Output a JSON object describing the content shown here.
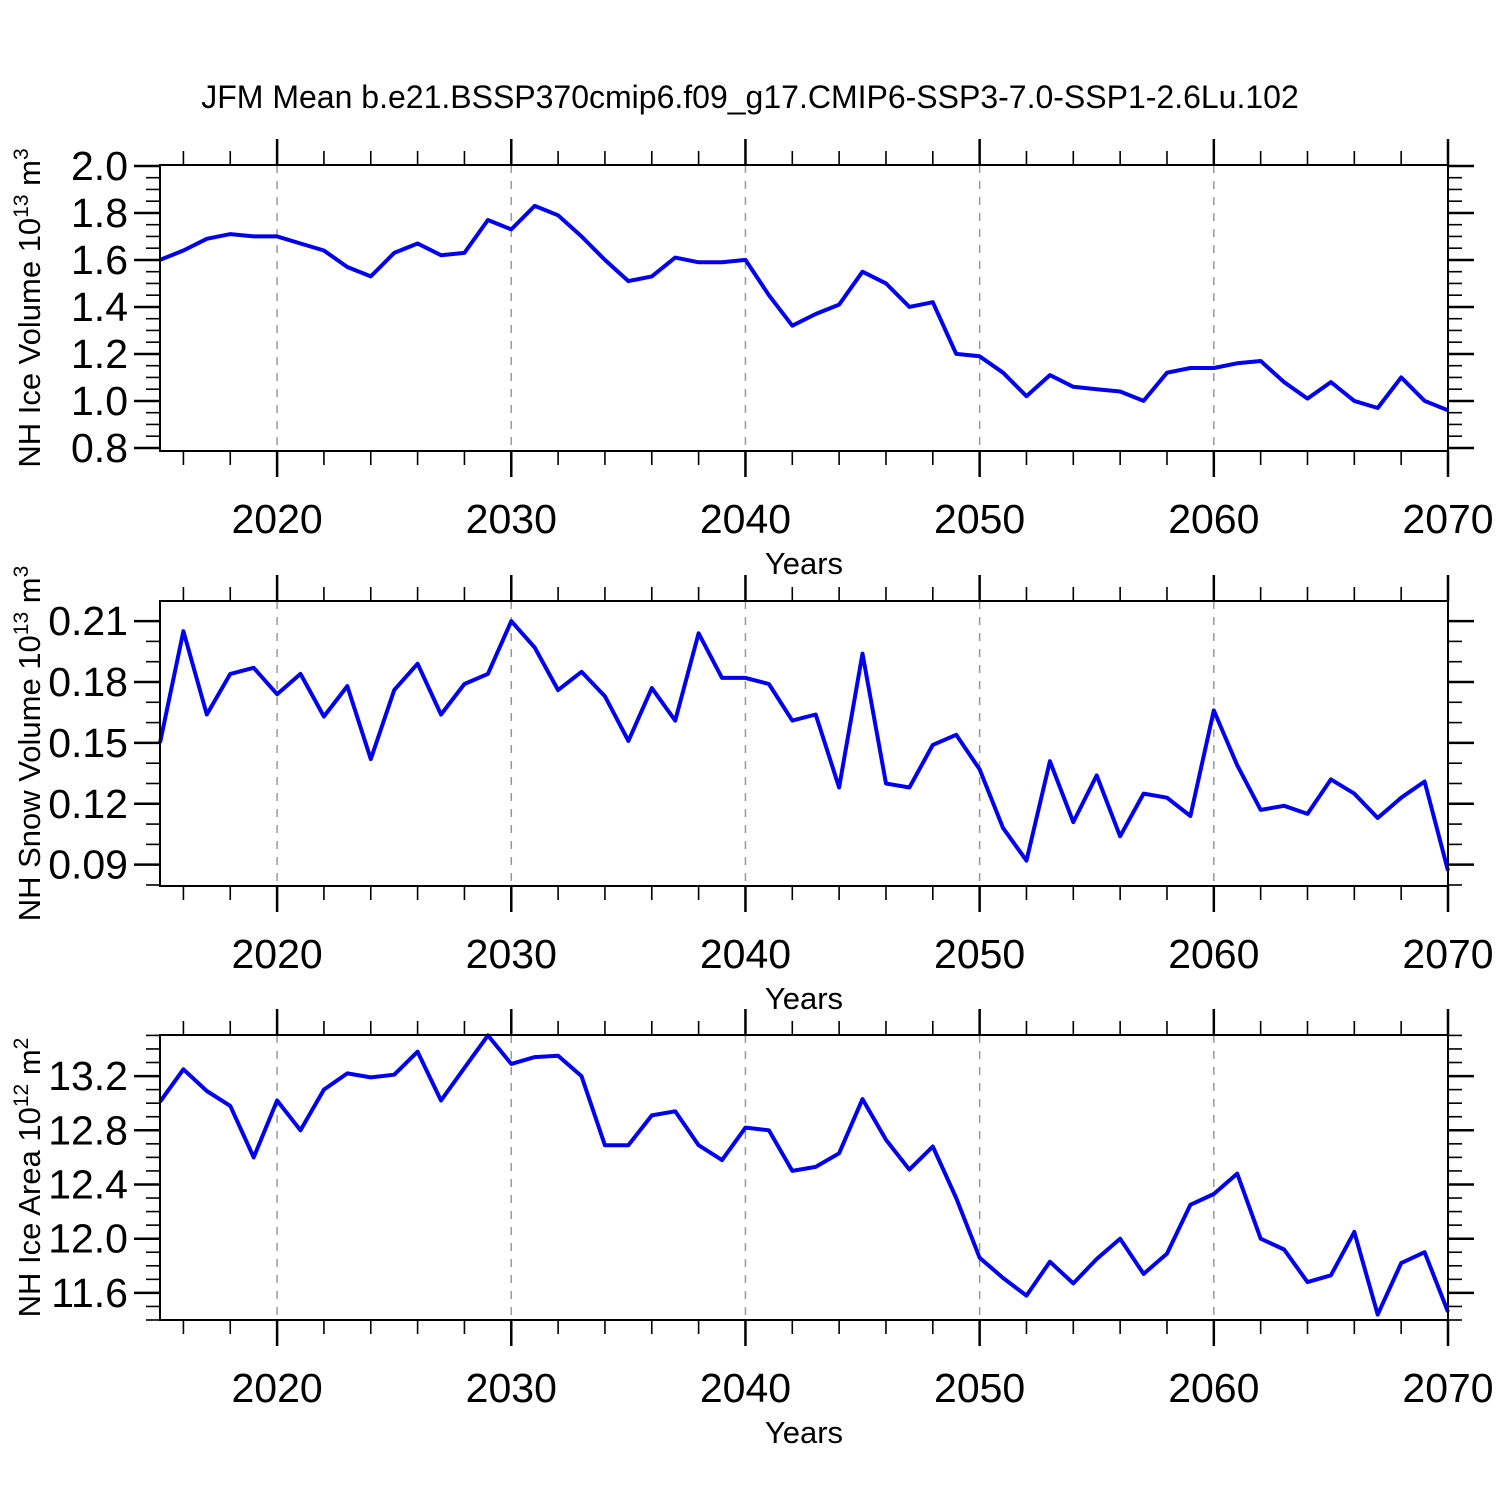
{
  "title": "JFM Mean b.e21.BSSP370cmip6.f09_g17.CMIP6-SSP3-7.0-SSP1-2.6Lu.102",
  "line_color": "#0000ee",
  "grid_color": "#999999",
  "axis_color": "#000000",
  "chart_data": [
    {
      "type": "line",
      "ylabel": "NH Ice Volume 10^13 m^3",
      "ylabel_parts": [
        {
          "text": "NH Ice Volume 10",
          "sup": false
        },
        {
          "text": "13",
          "sup": true
        },
        {
          "text": " m",
          "sup": false
        },
        {
          "text": "3",
          "sup": true
        }
      ],
      "xlabel": "Years",
      "x": [
        2015,
        2016,
        2017,
        2018,
        2019,
        2020,
        2021,
        2022,
        2023,
        2024,
        2025,
        2026,
        2027,
        2028,
        2029,
        2030,
        2031,
        2032,
        2033,
        2034,
        2035,
        2036,
        2037,
        2038,
        2039,
        2040,
        2041,
        2042,
        2043,
        2044,
        2045,
        2046,
        2047,
        2048,
        2049,
        2050,
        2051,
        2052,
        2053,
        2054,
        2055,
        2056,
        2057,
        2058,
        2059,
        2060,
        2061,
        2062,
        2063,
        2064,
        2065,
        2066,
        2067,
        2068,
        2069,
        2070
      ],
      "values": [
        1.6,
        1.64,
        1.69,
        1.71,
        1.7,
        1.7,
        1.67,
        1.64,
        1.57,
        1.53,
        1.63,
        1.67,
        1.62,
        1.63,
        1.77,
        1.73,
        1.83,
        1.79,
        1.7,
        1.6,
        1.51,
        1.53,
        1.61,
        1.59,
        1.59,
        1.6,
        1.45,
        1.32,
        1.37,
        1.41,
        1.55,
        1.5,
        1.4,
        1.42,
        1.2,
        1.19,
        1.12,
        1.02,
        1.11,
        1.06,
        1.05,
        1.04,
        1.0,
        1.12,
        1.14,
        1.14,
        1.16,
        1.17,
        1.08,
        1.01,
        1.08,
        1.0,
        0.97,
        1.1,
        1.0,
        0.96
      ],
      "ylim": [
        0.787,
        2.004
      ],
      "yticks": [
        0.8,
        1.0,
        1.2,
        1.4,
        1.6,
        1.8,
        2.0
      ],
      "ytick_labels": [
        "0.8",
        "1.0",
        "1.2",
        "1.4",
        "1.6",
        "1.8",
        "2.0"
      ],
      "yminor_step": 0.05,
      "xlim": [
        2015,
        2070
      ],
      "xticks": [
        2020,
        2030,
        2040,
        2050,
        2060,
        2070
      ],
      "xtick_labels": [
        "2020",
        "2030",
        "2040",
        "2050",
        "2060",
        "2070"
      ],
      "xminor_step": 2,
      "grid": "vertical-dashed",
      "legend": "none"
    },
    {
      "type": "line",
      "ylabel": "NH Snow Volume 10^13 m^3",
      "ylabel_parts": [
        {
          "text": "NH Snow Volume 10",
          "sup": false
        },
        {
          "text": "13",
          "sup": true
        },
        {
          "text": " m",
          "sup": false
        },
        {
          "text": "3",
          "sup": true
        }
      ],
      "xlabel": "Years",
      "x": [
        2015,
        2016,
        2017,
        2018,
        2019,
        2020,
        2021,
        2022,
        2023,
        2024,
        2025,
        2026,
        2027,
        2028,
        2029,
        2030,
        2031,
        2032,
        2033,
        2034,
        2035,
        2036,
        2037,
        2038,
        2039,
        2040,
        2041,
        2042,
        2043,
        2044,
        2045,
        2046,
        2047,
        2048,
        2049,
        2050,
        2051,
        2052,
        2053,
        2054,
        2055,
        2056,
        2057,
        2058,
        2059,
        2060,
        2061,
        2062,
        2063,
        2064,
        2065,
        2066,
        2067,
        2068,
        2069,
        2070
      ],
      "values": [
        0.15,
        0.205,
        0.164,
        0.184,
        0.187,
        0.174,
        0.184,
        0.163,
        0.178,
        0.142,
        0.176,
        0.189,
        0.164,
        0.179,
        0.184,
        0.21,
        0.197,
        0.176,
        0.185,
        0.173,
        0.151,
        0.177,
        0.161,
        0.204,
        0.182,
        0.182,
        0.179,
        0.161,
        0.164,
        0.128,
        0.194,
        0.13,
        0.128,
        0.149,
        0.154,
        0.137,
        0.108,
        0.092,
        0.141,
        0.111,
        0.134,
        0.104,
        0.125,
        0.123,
        0.114,
        0.166,
        0.139,
        0.117,
        0.119,
        0.115,
        0.132,
        0.125,
        0.113,
        0.123,
        0.131,
        0.087
      ],
      "ylim": [
        0.0795,
        0.2199
      ],
      "yticks": [
        0.09,
        0.12,
        0.15,
        0.18,
        0.21
      ],
      "ytick_labels": [
        "0.09",
        "0.12",
        "0.15",
        "0.18",
        "0.21"
      ],
      "yminor_step": 0.01,
      "xlim": [
        2015,
        2070
      ],
      "xticks": [
        2020,
        2030,
        2040,
        2050,
        2060,
        2070
      ],
      "xtick_labels": [
        "2020",
        "2030",
        "2040",
        "2050",
        "2060",
        "2070"
      ],
      "xminor_step": 2,
      "grid": "vertical-dashed",
      "legend": "none"
    },
    {
      "type": "line",
      "ylabel": "NH Ice Area 10^12 m^2",
      "ylabel_parts": [
        {
          "text": "NH Ice Area 10",
          "sup": false
        },
        {
          "text": "12",
          "sup": true
        },
        {
          "text": " m",
          "sup": false
        },
        {
          "text": "2",
          "sup": true
        }
      ],
      "xlabel": "Years",
      "x": [
        2015,
        2016,
        2017,
        2018,
        2019,
        2020,
        2021,
        2022,
        2023,
        2024,
        2025,
        2026,
        2027,
        2028,
        2029,
        2030,
        2031,
        2032,
        2033,
        2034,
        2035,
        2036,
        2037,
        2038,
        2039,
        2040,
        2041,
        2042,
        2043,
        2044,
        2045,
        2046,
        2047,
        2048,
        2049,
        2050,
        2051,
        2052,
        2053,
        2054,
        2055,
        2056,
        2057,
        2058,
        2059,
        2060,
        2061,
        2062,
        2063,
        2064,
        2065,
        2066,
        2067,
        2068,
        2069,
        2070
      ],
      "values": [
        13.01,
        13.25,
        13.09,
        12.98,
        12.6,
        13.02,
        12.8,
        13.1,
        13.22,
        13.19,
        13.21,
        13.38,
        13.02,
        13.26,
        13.5,
        13.29,
        13.34,
        13.35,
        13.2,
        12.69,
        12.69,
        12.91,
        12.94,
        12.69,
        12.58,
        12.82,
        12.8,
        12.5,
        12.53,
        12.63,
        13.03,
        12.73,
        12.51,
        12.68,
        12.3,
        11.86,
        11.71,
        11.58,
        11.83,
        11.67,
        11.85,
        12.0,
        11.74,
        11.89,
        12.25,
        12.33,
        12.48,
        12.0,
        11.92,
        11.68,
        11.73,
        12.05,
        11.44,
        11.82,
        11.9,
        11.46
      ],
      "ylim": [
        11.4,
        13.503
      ],
      "yticks": [
        11.6,
        12.0,
        12.4,
        12.8,
        13.2
      ],
      "ytick_labels": [
        "11.6",
        "12.0",
        "12.4",
        "12.8",
        "13.2"
      ],
      "yminor_step": 0.1,
      "xlim": [
        2015,
        2070
      ],
      "xticks": [
        2020,
        2030,
        2040,
        2050,
        2060,
        2070
      ],
      "xtick_labels": [
        "2020",
        "2030",
        "2040",
        "2050",
        "2060",
        "2070"
      ],
      "xminor_step": 2,
      "grid": "vertical-dashed",
      "legend": "none"
    }
  ]
}
